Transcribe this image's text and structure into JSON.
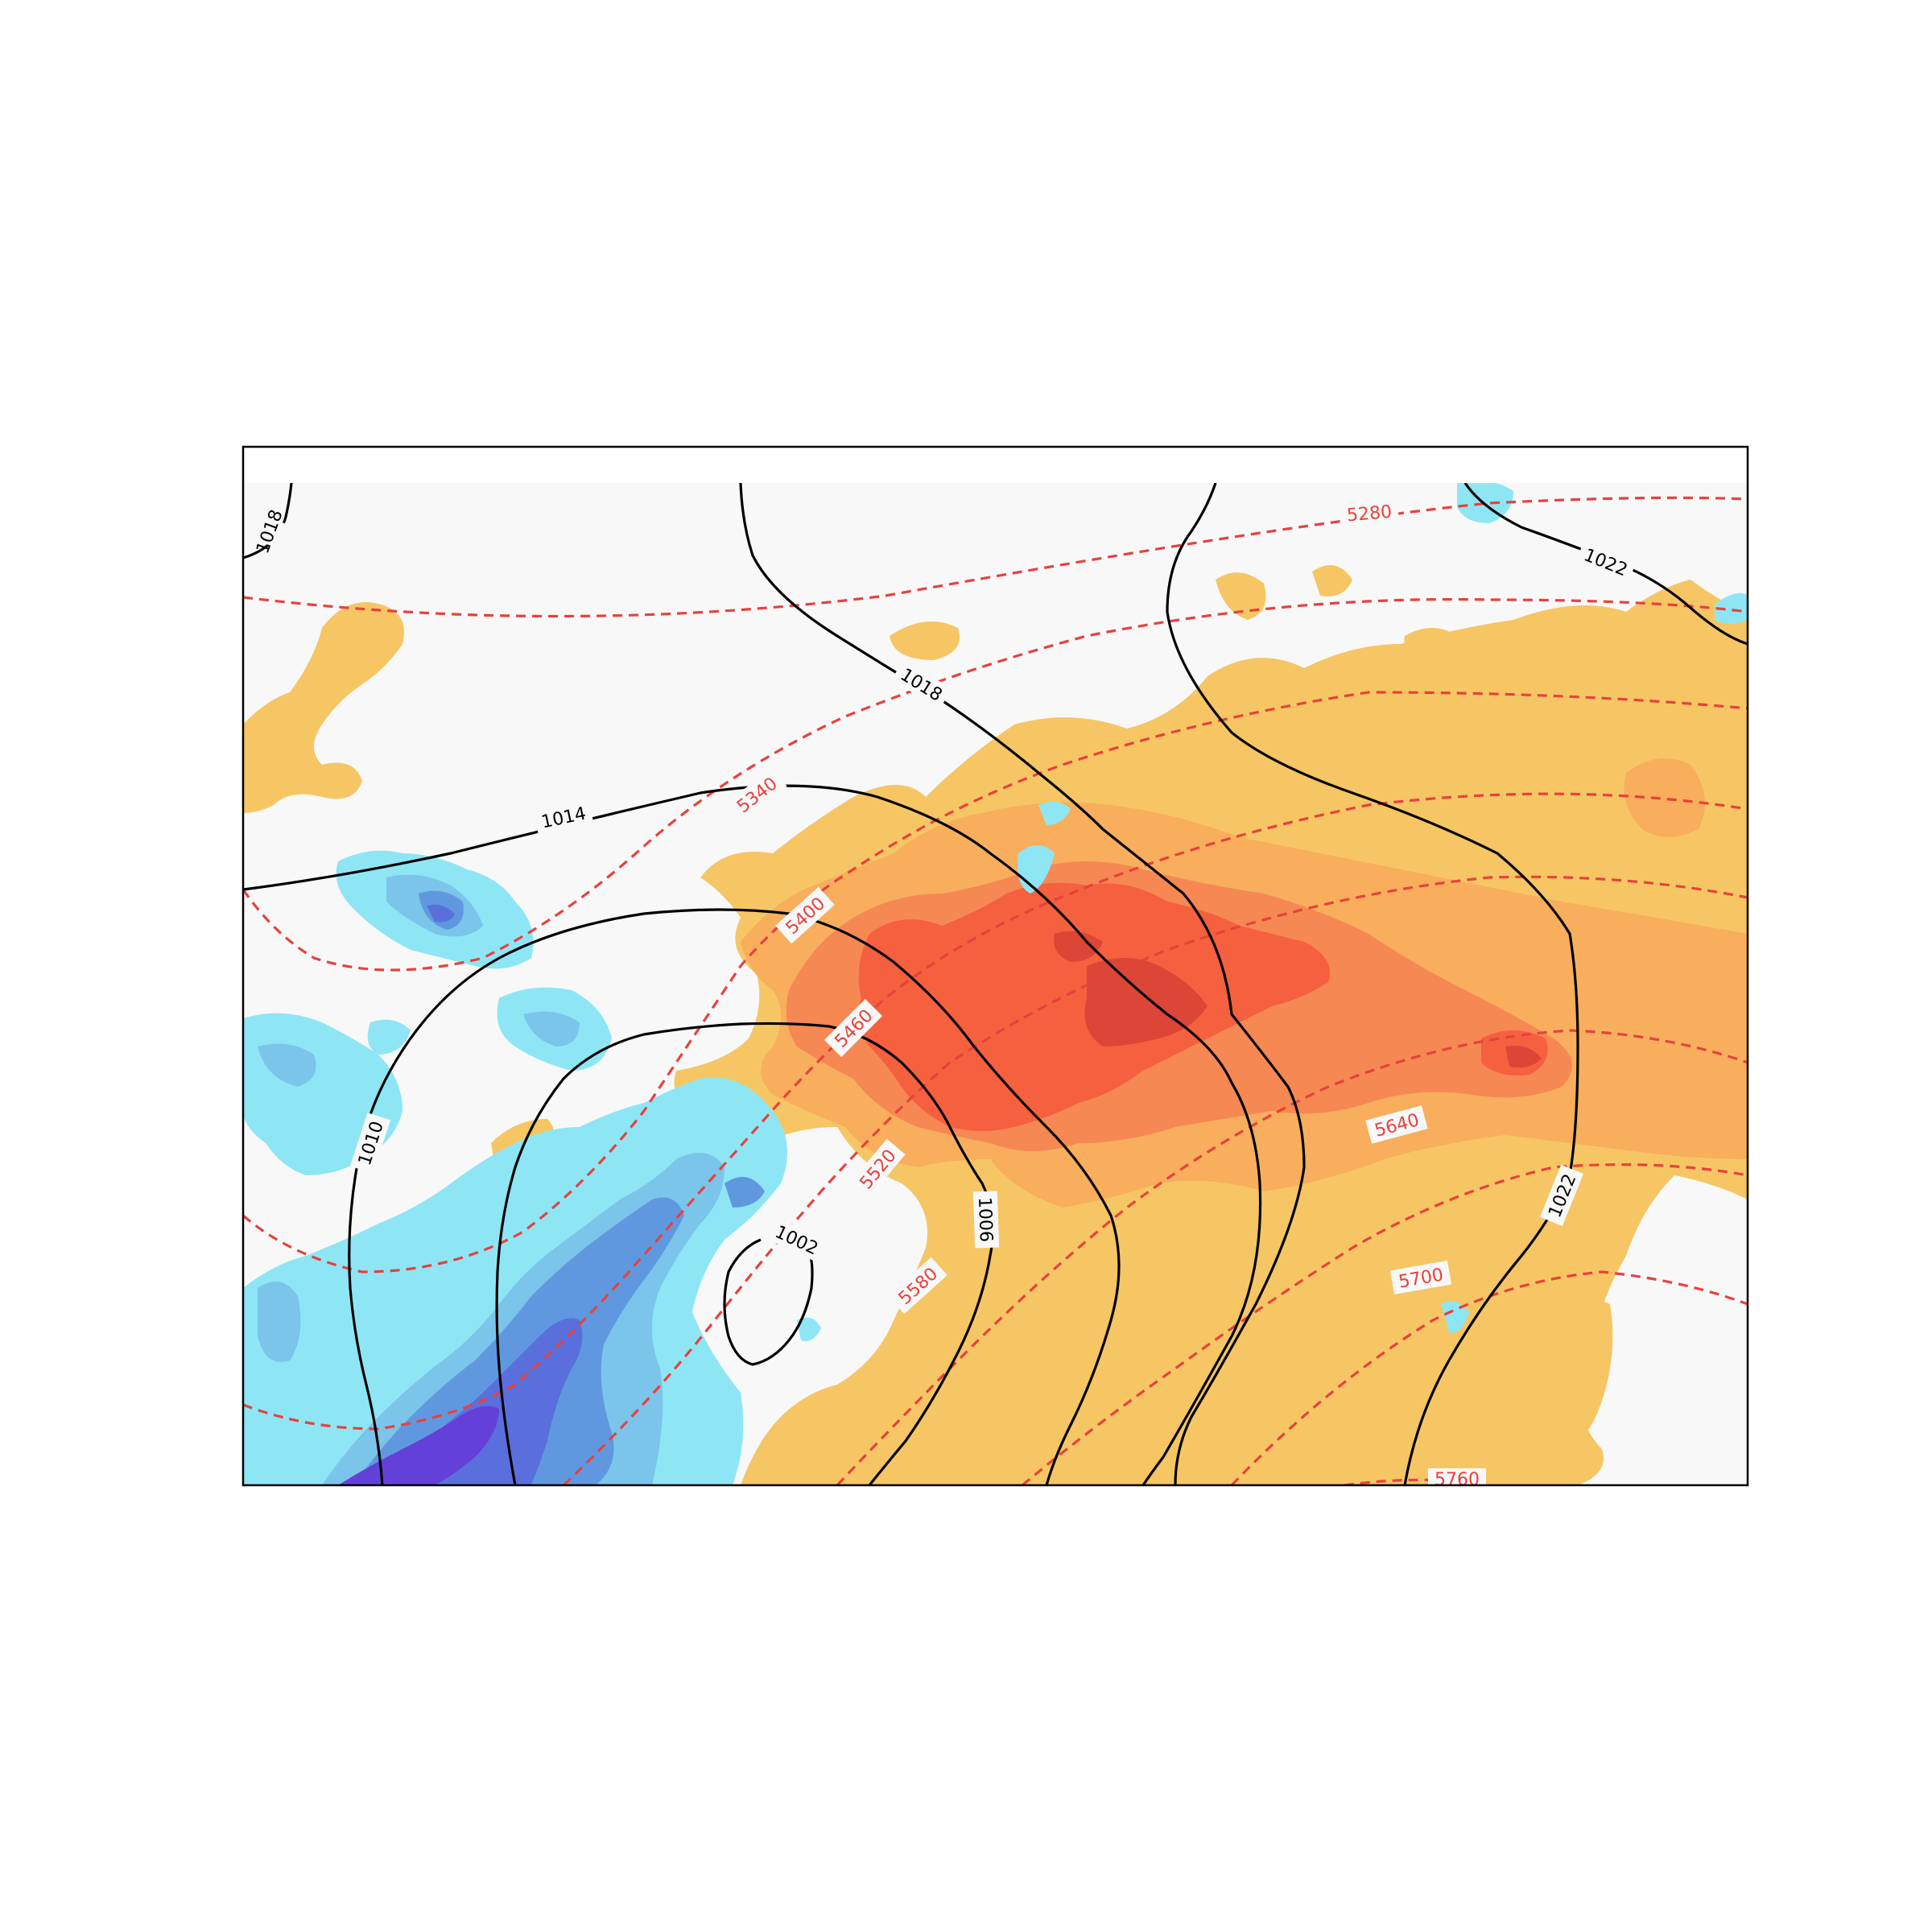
{
  "map": {
    "colors": {
      "frame": "#000000",
      "background": "#f8f8f8",
      "isobar": "#000000",
      "height_contour": "#e8413c",
      "warm_1": "#f6c665",
      "warm_2": "#f8ae5d",
      "warm_3": "#f68854",
      "warm_4": "#f5603f",
      "warm_5": "#dc4637",
      "cold_1": "#8ee6f5",
      "cold_2": "#7bc4ea",
      "cold_3": "#6098e0",
      "cold_4": "#5a6fdc",
      "cold_5": "#6341d8"
    },
    "isobar_labels": [
      "1018",
      "1014",
      "1010",
      "1018",
      "1002",
      "1006",
      "1022",
      "1022"
    ],
    "height_labels": [
      "5280",
      "5340",
      "5400",
      "5460",
      "5520",
      "5580",
      "5640",
      "5700",
      "5760"
    ]
  }
}
